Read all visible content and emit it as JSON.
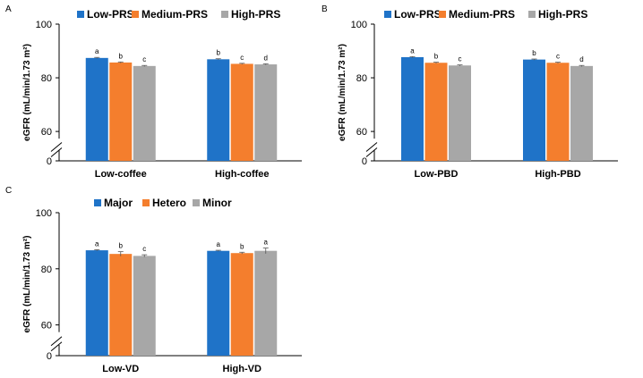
{
  "colors": [
    "#1F73C8",
    "#F47E2D",
    "#A7A7A7"
  ],
  "chart_data": [
    {
      "panel": "A",
      "type": "bar",
      "title": "",
      "xlabel": "",
      "ylabel": "eGFR (mL/min/1.73 m²)",
      "ylim": [
        0,
        100
      ],
      "axis_break": true,
      "yticks": [
        0,
        60,
        80,
        100
      ],
      "legend": "top",
      "categories": [
        "Low-coffee",
        "High-coffee"
      ],
      "series": [
        {
          "name": "Low-PRS",
          "values": [
            87.4,
            86.9
          ],
          "errors": [
            0.2,
            0.2
          ]
        },
        {
          "name": "Medium-PRS",
          "values": [
            85.7,
            85.2
          ],
          "errors": [
            0.2,
            0.2
          ]
        },
        {
          "name": "High-PRS",
          "values": [
            84.4,
            85.0
          ],
          "errors": [
            0.2,
            0.2
          ]
        }
      ],
      "annotations": [
        [
          "a",
          "b",
          "c"
        ],
        [
          "b",
          "c",
          "d"
        ]
      ]
    },
    {
      "panel": "B",
      "type": "bar",
      "title": "",
      "xlabel": "",
      "ylabel": "eGFR (mL/min/1.73 m²)",
      "ylim": [
        0,
        100
      ],
      "axis_break": true,
      "yticks": [
        0,
        60,
        80,
        100
      ],
      "legend": "top",
      "categories": [
        "Low-PBD",
        "High-PBD"
      ],
      "series": [
        {
          "name": "Low-PRS",
          "values": [
            87.7,
            86.8
          ],
          "errors": [
            0.2,
            0.2
          ]
        },
        {
          "name": "Medium-PRS",
          "values": [
            85.6,
            85.6
          ],
          "errors": [
            0.2,
            0.2
          ]
        },
        {
          "name": "High-PRS",
          "values": [
            84.6,
            84.4
          ],
          "errors": [
            0.2,
            0.2
          ]
        }
      ],
      "annotations": [
        [
          "a",
          "b",
          "c"
        ],
        [
          "b",
          "c",
          "d"
        ]
      ]
    },
    {
      "panel": "C",
      "type": "bar",
      "title": "",
      "xlabel": "",
      "ylabel": "eGFR (mL/min/1.73 m²)",
      "ylim": [
        0,
        100
      ],
      "axis_break": true,
      "yticks": [
        0,
        60,
        80,
        100
      ],
      "legend": "top",
      "categories": [
        "Low-VD",
        "High-VD"
      ],
      "series": [
        {
          "name": "Major",
          "values": [
            86.6,
            86.4
          ],
          "errors": [
            0.2,
            0.2
          ]
        },
        {
          "name": "Hetero",
          "values": [
            85.3,
            85.6
          ],
          "errors": [
            0.8,
            0.3
          ]
        },
        {
          "name": "Minor",
          "values": [
            84.6,
            86.4
          ],
          "errors": [
            0.4,
            1.0
          ]
        }
      ],
      "annotations": [
        [
          "a",
          "b",
          "c"
        ],
        [
          "a",
          "b",
          "a"
        ]
      ]
    }
  ]
}
